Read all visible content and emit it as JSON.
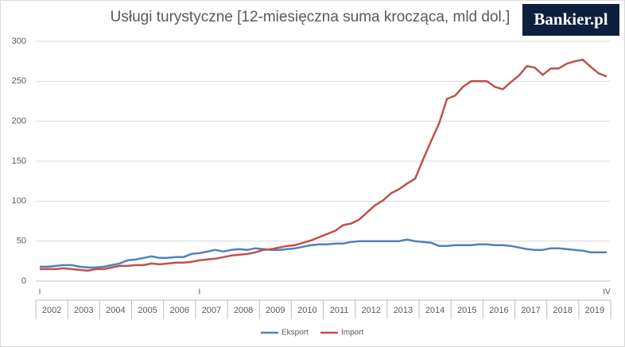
{
  "chart_data": {
    "type": "line",
    "title": "Usługi turystyczne [12-miesięczna  suma krocząca, mld dol.]",
    "logo": "Bankier.pl",
    "categories": [
      "I",
      null,
      null,
      null,
      null,
      null,
      null,
      null,
      null,
      null,
      null,
      null,
      null,
      null,
      null,
      null,
      null,
      null,
      null,
      null,
      "I",
      null,
      null,
      null,
      null,
      null,
      null,
      null,
      null,
      null,
      null,
      null,
      null,
      null,
      null,
      null,
      null,
      null,
      null,
      null,
      null,
      null,
      null,
      null,
      null,
      null,
      null,
      null,
      null,
      null,
      null,
      null,
      null,
      null,
      null,
      null,
      null,
      null,
      null,
      null,
      null,
      null,
      null,
      null,
      null,
      null,
      null,
      null,
      null,
      null,
      null,
      "IV"
    ],
    "years": [
      "2002",
      "2003",
      "2004",
      "2005",
      "2006",
      "2007",
      "2008",
      "2009",
      "2010",
      "2011",
      "2012",
      "2013",
      "2014",
      "2015",
      "2016",
      "2017",
      "2018",
      "2019"
    ],
    "series": [
      {
        "name": "Eksport",
        "color": "#4f81bd",
        "values": [
          18,
          18,
          19,
          20,
          20,
          18,
          17,
          17,
          18,
          20,
          22,
          26,
          27,
          29,
          31,
          29,
          29,
          30,
          30,
          34,
          35,
          37,
          39,
          37,
          39,
          40,
          39,
          41,
          40,
          39,
          39,
          40,
          41,
          43,
          45,
          46,
          46,
          47,
          47,
          49,
          50,
          50,
          50,
          50,
          50,
          50,
          52,
          50,
          49,
          48,
          44,
          44,
          45,
          45,
          45,
          46,
          46,
          45,
          45,
          44,
          42,
          40,
          39,
          39,
          41,
          41,
          40,
          39,
          38,
          36,
          36,
          36
        ]
      },
      {
        "name": "Import",
        "color": "#c0504d",
        "values": [
          15,
          15,
          15,
          16,
          15,
          14,
          13,
          15,
          15,
          17,
          19,
          19,
          20,
          20,
          22,
          21,
          22,
          23,
          23,
          24,
          26,
          27,
          28,
          30,
          32,
          33,
          34,
          36,
          39,
          40,
          42,
          44,
          45,
          48,
          51,
          55,
          59,
          63,
          70,
          72,
          77,
          86,
          95,
          101,
          110,
          115,
          122,
          128,
          152,
          175,
          197,
          228,
          232,
          243,
          250,
          250,
          250,
          243,
          240,
          249,
          257,
          269,
          267,
          258,
          266,
          266,
          272,
          275,
          277,
          268,
          260,
          256
        ]
      }
    ],
    "ylim": [
      0,
      300
    ],
    "yticks": [
      0,
      50,
      100,
      150,
      200,
      250,
      300
    ],
    "grid": true,
    "legend": "bottom"
  }
}
